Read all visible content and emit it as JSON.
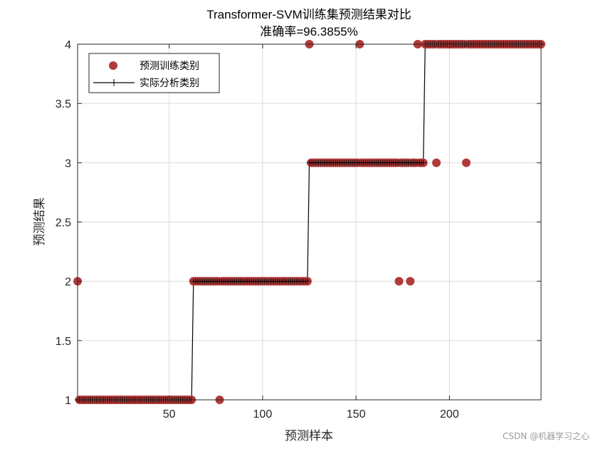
{
  "chart_data": {
    "type": "scatter",
    "title": "Transformer-SVM训练集预测结果对比",
    "subtitle": "准确率=96.3855%",
    "xlabel": "预测样本",
    "ylabel": "预测结果",
    "xlim": [
      1,
      249
    ],
    "ylim": [
      1,
      4
    ],
    "xticks": [
      50,
      100,
      150,
      200
    ],
    "yticks": [
      1,
      1.5,
      2,
      2.5,
      3,
      3.5,
      4
    ],
    "xtick_labels": [
      "50",
      "100",
      "150",
      "200"
    ],
    "ytick_labels": [
      "1",
      "1.5",
      "2",
      "2.5",
      "3",
      "3.5",
      "4"
    ],
    "grid": true,
    "legend_position": "top-left",
    "actual_segments": [
      {
        "class": 1,
        "from": 1,
        "to": 62
      },
      {
        "class": 2,
        "from": 63,
        "to": 124
      },
      {
        "class": 3,
        "from": 125,
        "to": 186
      },
      {
        "class": 4,
        "from": 187,
        "to": 249
      }
    ],
    "misclassified": [
      {
        "x": 1,
        "y": 2
      },
      {
        "x": 77,
        "y": 1
      },
      {
        "x": 125,
        "y": 4
      },
      {
        "x": 152,
        "y": 4
      },
      {
        "x": 173,
        "y": 2
      },
      {
        "x": 179,
        "y": 2
      },
      {
        "x": 183,
        "y": 4
      },
      {
        "x": 193,
        "y": 3
      },
      {
        "x": 209,
        "y": 3
      }
    ],
    "series": [
      {
        "name": "预测训练类别",
        "style": "marker",
        "color": "#b23a3a"
      },
      {
        "name": "实际分析类别",
        "style": "line-plus",
        "color": "#000000"
      }
    ]
  },
  "watermark": "CSDN @机器学习之心"
}
